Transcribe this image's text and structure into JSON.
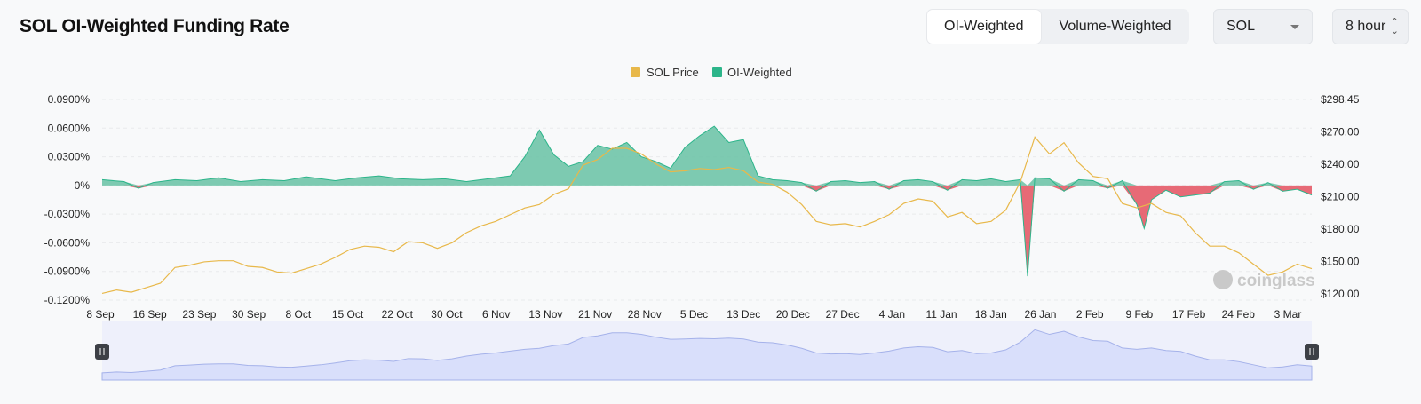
{
  "header": {
    "title": "SOL OI-Weighted Funding Rate",
    "tabs": [
      {
        "label": "OI-Weighted",
        "active": true
      },
      {
        "label": "Volume-Weighted",
        "active": false
      }
    ],
    "coin_select": "SOL",
    "interval_select": "8 hour"
  },
  "watermark": "coinglass",
  "colors": {
    "price": "#e8b84a",
    "positive": "#2cb58a",
    "positive_fill": "#6fc4a8",
    "negative": "#e23a4a",
    "navigator": "#d9dffb",
    "navigator_line": "#a5b2ea"
  },
  "chart_data": {
    "type": "area",
    "legend": [
      "SOL Price",
      "OI-Weighted"
    ],
    "legend_position": "top-center",
    "x_ticks": [
      "8 Sep",
      "16 Sep",
      "23 Sep",
      "30 Sep",
      "8 Oct",
      "15 Oct",
      "22 Oct",
      "30 Oct",
      "6 Nov",
      "13 Nov",
      "21 Nov",
      "28 Nov",
      "5 Dec",
      "13 Dec",
      "20 Dec",
      "27 Dec",
      "4 Jan",
      "11 Jan",
      "18 Jan",
      "26 Jan",
      "2 Feb",
      "9 Feb",
      "17 Feb",
      "24 Feb",
      "3 Mar"
    ],
    "y_left_ticks": [
      "0.0900%",
      "0.0600%",
      "0.0300%",
      "0%",
      "-0.0300%",
      "-0.0600%",
      "-0.0900%",
      "-0.1200%"
    ],
    "y_left_range": [
      -0.12,
      0.09
    ],
    "y_right_ticks": [
      "$298.45",
      "$270.00",
      "$240.00",
      "$210.00",
      "$180.00",
      "$150.00",
      "$120.00"
    ],
    "y_right_range": [
      120,
      298.45
    ],
    "grid": true,
    "series": [
      {
        "name": "SOL Price",
        "axis": "right",
        "points": [
          [
            0,
            126
          ],
          [
            2,
            129
          ],
          [
            4,
            127
          ],
          [
            6,
            131
          ],
          [
            8,
            135
          ],
          [
            10,
            149
          ],
          [
            12,
            151
          ],
          [
            14,
            154
          ],
          [
            16,
            155
          ],
          [
            18,
            155
          ],
          [
            20,
            150
          ],
          [
            22,
            149
          ],
          [
            24,
            145
          ],
          [
            26,
            144
          ],
          [
            28,
            148
          ],
          [
            30,
            152
          ],
          [
            32,
            158
          ],
          [
            34,
            165
          ],
          [
            36,
            168
          ],
          [
            38,
            167
          ],
          [
            40,
            163
          ],
          [
            42,
            172
          ],
          [
            44,
            171
          ],
          [
            46,
            166
          ],
          [
            48,
            171
          ],
          [
            50,
            180
          ],
          [
            52,
            186
          ],
          [
            54,
            190
          ],
          [
            56,
            196
          ],
          [
            58,
            202
          ],
          [
            60,
            205
          ],
          [
            62,
            214
          ],
          [
            64,
            219
          ],
          [
            66,
            240
          ],
          [
            68,
            245
          ],
          [
            70,
            255
          ],
          [
            72,
            255
          ],
          [
            74,
            250
          ],
          [
            76,
            241
          ],
          [
            78,
            234
          ],
          [
            80,
            235
          ],
          [
            82,
            237
          ],
          [
            84,
            236
          ],
          [
            86,
            238
          ],
          [
            88,
            235
          ],
          [
            90,
            225
          ],
          [
            92,
            223
          ],
          [
            94,
            216
          ],
          [
            96,
            205
          ],
          [
            98,
            190
          ],
          [
            100,
            187
          ],
          [
            102,
            188
          ],
          [
            104,
            185
          ],
          [
            106,
            190
          ],
          [
            108,
            196
          ],
          [
            110,
            206
          ],
          [
            112,
            210
          ],
          [
            114,
            208
          ],
          [
            116,
            194
          ],
          [
            118,
            198
          ],
          [
            120,
            188
          ],
          [
            122,
            190
          ],
          [
            124,
            200
          ],
          [
            126,
            225
          ],
          [
            128,
            265
          ],
          [
            130,
            250
          ],
          [
            132,
            260
          ],
          [
            134,
            242
          ],
          [
            136,
            230
          ],
          [
            138,
            228
          ],
          [
            140,
            206
          ],
          [
            142,
            202
          ],
          [
            144,
            206
          ],
          [
            146,
            198
          ],
          [
            148,
            195
          ],
          [
            150,
            180
          ],
          [
            152,
            168
          ],
          [
            154,
            168
          ],
          [
            156,
            162
          ],
          [
            158,
            152
          ],
          [
            160,
            142
          ],
          [
            162,
            145
          ],
          [
            164,
            152
          ],
          [
            166,
            148
          ]
        ]
      },
      {
        "name": "OI-Weighted",
        "axis": "left",
        "points": [
          [
            0,
            0.006
          ],
          [
            3,
            0.004
          ],
          [
            5,
            -0.003
          ],
          [
            7,
            0.003
          ],
          [
            10,
            0.006
          ],
          [
            13,
            0.005
          ],
          [
            16,
            0.008
          ],
          [
            19,
            0.004
          ],
          [
            22,
            0.006
          ],
          [
            25,
            0.005
          ],
          [
            28,
            0.009
          ],
          [
            30,
            0.007
          ],
          [
            32,
            0.005
          ],
          [
            35,
            0.008
          ],
          [
            38,
            0.01
          ],
          [
            41,
            0.007
          ],
          [
            44,
            0.006
          ],
          [
            47,
            0.007
          ],
          [
            50,
            0.004
          ],
          [
            53,
            0.007
          ],
          [
            56,
            0.01
          ],
          [
            58,
            0.03
          ],
          [
            60,
            0.058
          ],
          [
            62,
            0.032
          ],
          [
            64,
            0.02
          ],
          [
            66,
            0.025
          ],
          [
            68,
            0.042
          ],
          [
            70,
            0.038
          ],
          [
            72,
            0.045
          ],
          [
            74,
            0.03
          ],
          [
            76,
            0.025
          ],
          [
            78,
            0.018
          ],
          [
            80,
            0.04
          ],
          [
            82,
            0.052
          ],
          [
            84,
            0.062
          ],
          [
            86,
            0.045
          ],
          [
            88,
            0.048
          ],
          [
            90,
            0.01
          ],
          [
            92,
            0.006
          ],
          [
            94,
            0.005
          ],
          [
            96,
            0.003
          ],
          [
            98,
            -0.006
          ],
          [
            100,
            0.004
          ],
          [
            102,
            0.005
          ],
          [
            104,
            0.003
          ],
          [
            106,
            0.004
          ],
          [
            108,
            -0.004
          ],
          [
            110,
            0.005
          ],
          [
            112,
            0.006
          ],
          [
            114,
            0.004
          ],
          [
            116,
            -0.005
          ],
          [
            118,
            0.006
          ],
          [
            120,
            0.005
          ],
          [
            122,
            0.007
          ],
          [
            124,
            0.004
          ],
          [
            126,
            0.006
          ],
          [
            127,
            -0.095
          ],
          [
            128,
            0.008
          ],
          [
            130,
            0.007
          ],
          [
            132,
            -0.006
          ],
          [
            134,
            0.006
          ],
          [
            136,
            0.005
          ],
          [
            138,
            -0.003
          ],
          [
            140,
            0.005
          ],
          [
            142,
            -0.02
          ],
          [
            143,
            -0.045
          ],
          [
            144,
            -0.015
          ],
          [
            146,
            -0.005
          ],
          [
            148,
            -0.012
          ],
          [
            150,
            -0.01
          ],
          [
            152,
            -0.008
          ],
          [
            154,
            0.004
          ],
          [
            156,
            0.005
          ],
          [
            158,
            -0.004
          ],
          [
            160,
            0.003
          ],
          [
            162,
            -0.006
          ],
          [
            164,
            -0.004
          ],
          [
            166,
            -0.01
          ]
        ]
      }
    ],
    "x_index_range": [
      0,
      166
    ]
  }
}
